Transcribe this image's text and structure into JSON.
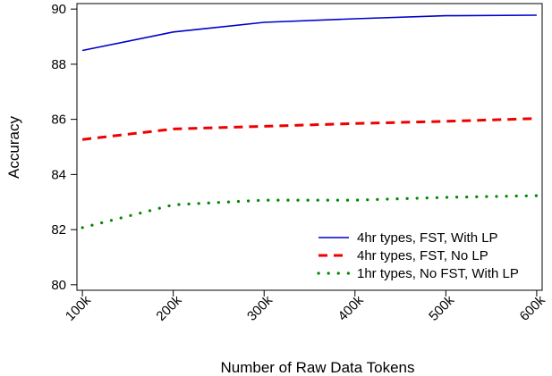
{
  "chart_data": {
    "type": "line",
    "title": "",
    "xlabel": "Number of Raw Data Tokens",
    "ylabel": "Accuracy",
    "x": [
      100000,
      200000,
      300000,
      400000,
      500000,
      600000
    ],
    "x_tick_labels": [
      "100k",
      "200k",
      "300k",
      "400k",
      "500k",
      "600k"
    ],
    "xlim": [
      94000,
      606000
    ],
    "ylim": [
      79.8,
      90.2
    ],
    "y_ticks": [
      80,
      82,
      84,
      86,
      88,
      90
    ],
    "grid": false,
    "legend_position": "bottom-right",
    "series": [
      {
        "name": "4hr types, FST, With LP",
        "color": "#0000cc",
        "style": "solid",
        "values": [
          88.5,
          89.17,
          89.52,
          89.65,
          89.76,
          89.78
        ]
      },
      {
        "name": "4hr types, FST, No LP",
        "color": "#ee0000",
        "style": "dashed",
        "values": [
          85.27,
          85.65,
          85.75,
          85.85,
          85.93,
          86.03
        ]
      },
      {
        "name": "1hr types, No FST, With LP",
        "color": "#008800",
        "style": "dotted",
        "values": [
          82.07,
          82.9,
          83.07,
          83.07,
          83.17,
          83.23
        ]
      }
    ]
  }
}
